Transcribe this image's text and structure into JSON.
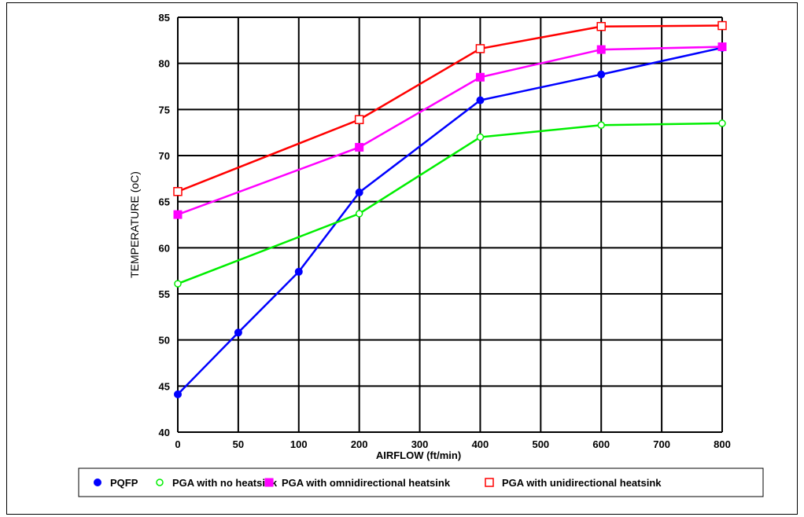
{
  "chart_data": {
    "type": "line",
    "title": "",
    "xlabel": "AIRFLOW (ft/min)",
    "ylabel": "TEMPERATURE (oC)",
    "x_categories": [
      0,
      50,
      100,
      200,
      300,
      400,
      500,
      600,
      700,
      800
    ],
    "ylim": [
      40,
      85
    ],
    "y_ticks": [
      40,
      45,
      50,
      55,
      60,
      65,
      70,
      75,
      80,
      85
    ],
    "grid": true,
    "legend_position": "bottom",
    "series": [
      {
        "name": "PQFP",
        "color": "#0000ff",
        "marker": "filled-circle",
        "points": [
          [
            0,
            44.1
          ],
          [
            50,
            50.8
          ],
          [
            100,
            57.4
          ],
          [
            200,
            66.0
          ],
          [
            400,
            76.0
          ],
          [
            600,
            78.8
          ],
          [
            800,
            81.7
          ]
        ]
      },
      {
        "name": "PGA with no heatsink",
        "color": "#00ee00",
        "marker": "open-circle",
        "points": [
          [
            0,
            56.1
          ],
          [
            200,
            63.7
          ],
          [
            400,
            72.0
          ],
          [
            600,
            73.3
          ],
          [
            800,
            73.5
          ]
        ]
      },
      {
        "name": "PGA with omnidirectional heatsink",
        "color": "#ff00ff",
        "marker": "filled-square",
        "points": [
          [
            0,
            63.6
          ],
          [
            200,
            70.9
          ],
          [
            400,
            78.5
          ],
          [
            600,
            81.5
          ],
          [
            800,
            81.8
          ]
        ]
      },
      {
        "name": "PGA with unidirectional heatsink",
        "color": "#ff0000",
        "marker": "open-square",
        "points": [
          [
            0,
            66.1
          ],
          [
            200,
            73.9
          ],
          [
            400,
            81.6
          ],
          [
            600,
            84.0
          ],
          [
            800,
            84.1
          ]
        ]
      }
    ]
  }
}
